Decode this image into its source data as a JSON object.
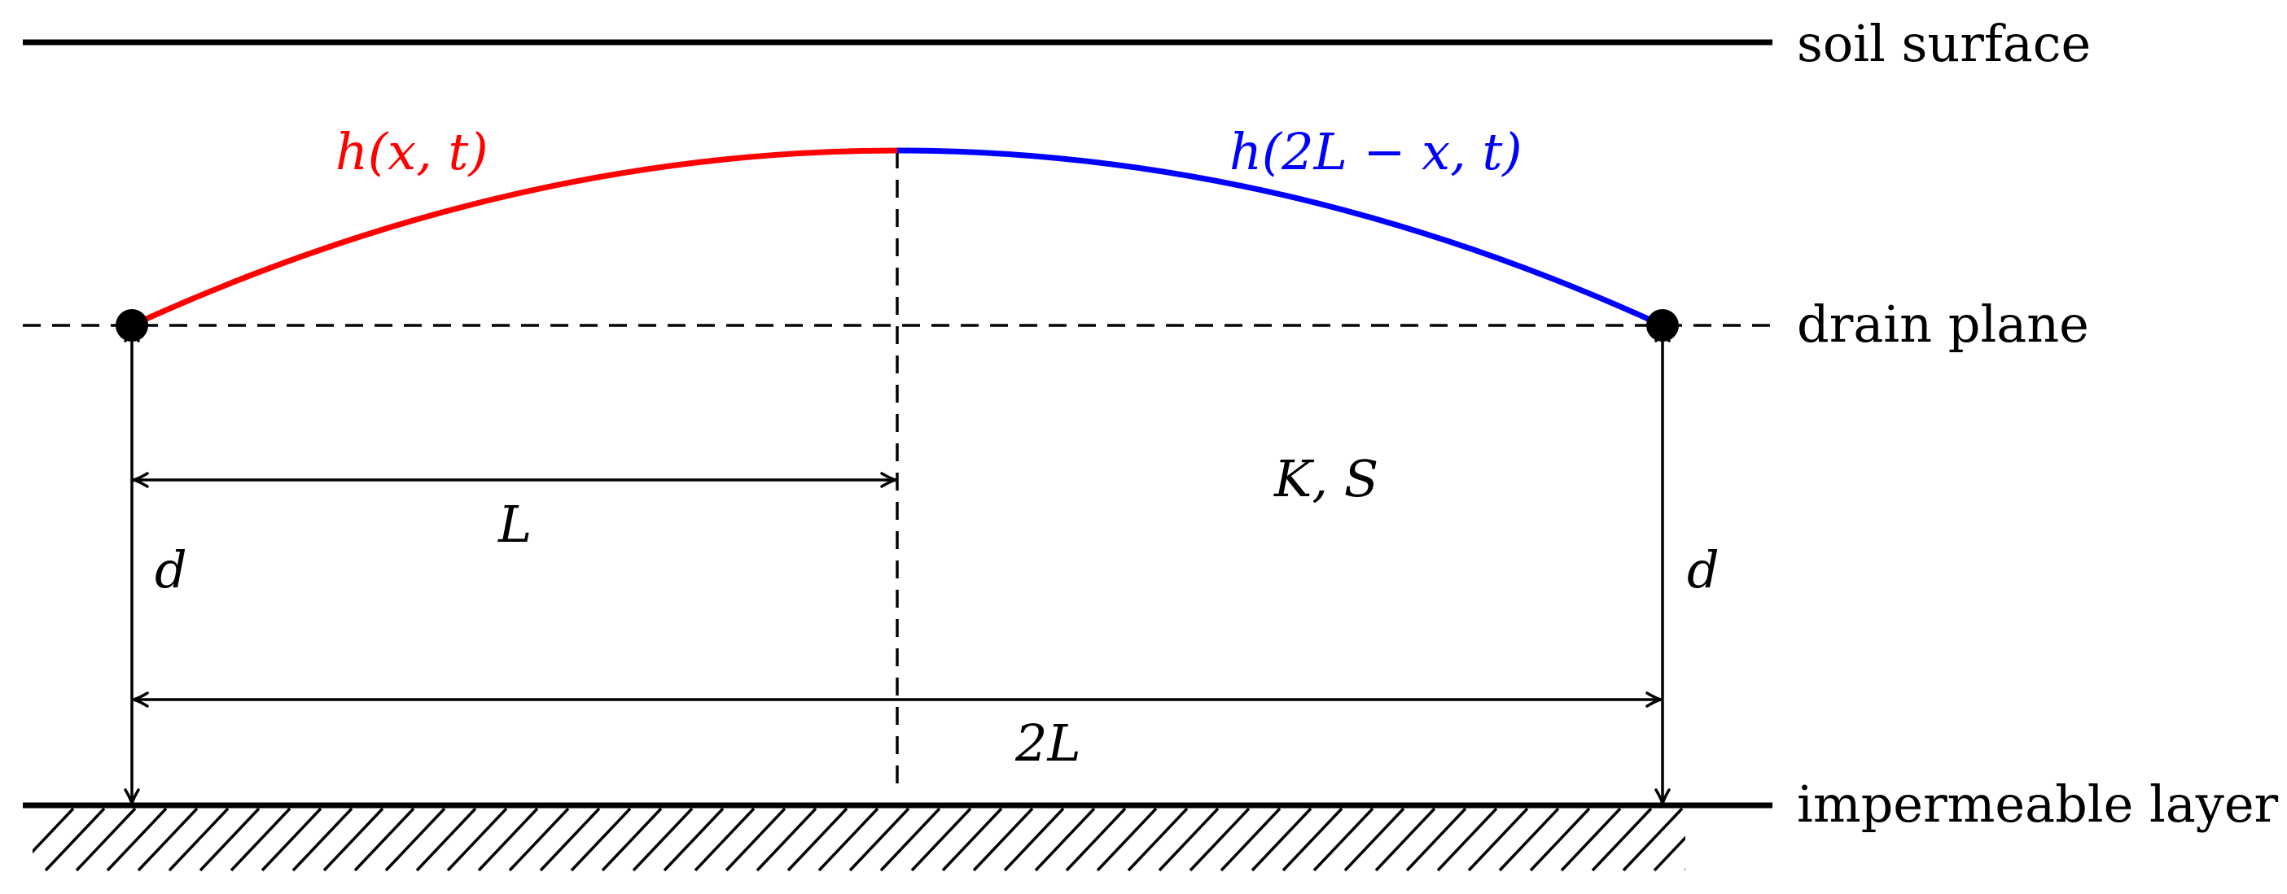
{
  "labels": {
    "soil_surface": "soil surface",
    "drain_plane": "drain plane",
    "impermeable_layer": "impermeable layer",
    "h_left": "h(x, t)",
    "h_right": "h(2L − x, t)",
    "half_spacing": "L",
    "full_spacing": "2L",
    "depth_left": "d",
    "depth_right": "d",
    "soil_params": "K, S"
  },
  "colors": {
    "line": "#000000",
    "left_curve": "#ff0000",
    "right_curve": "#0000ff",
    "background": "#ffffff"
  }
}
